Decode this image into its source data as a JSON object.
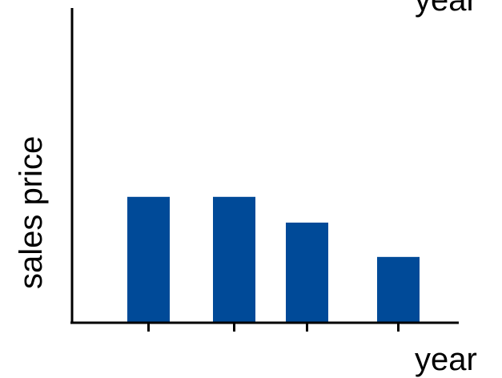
{
  "chart_data": {
    "type": "bar",
    "title": "year",
    "xlabel": "year",
    "ylabel": "sales price",
    "categories": [
      "",
      "",
      "",
      ""
    ],
    "values": [
      4.4,
      4.4,
      3.5,
      2.3
    ],
    "ylim": [
      0,
      11
    ],
    "grid": false,
    "bar_color": "#004a98",
    "axis_color": "#000000"
  }
}
